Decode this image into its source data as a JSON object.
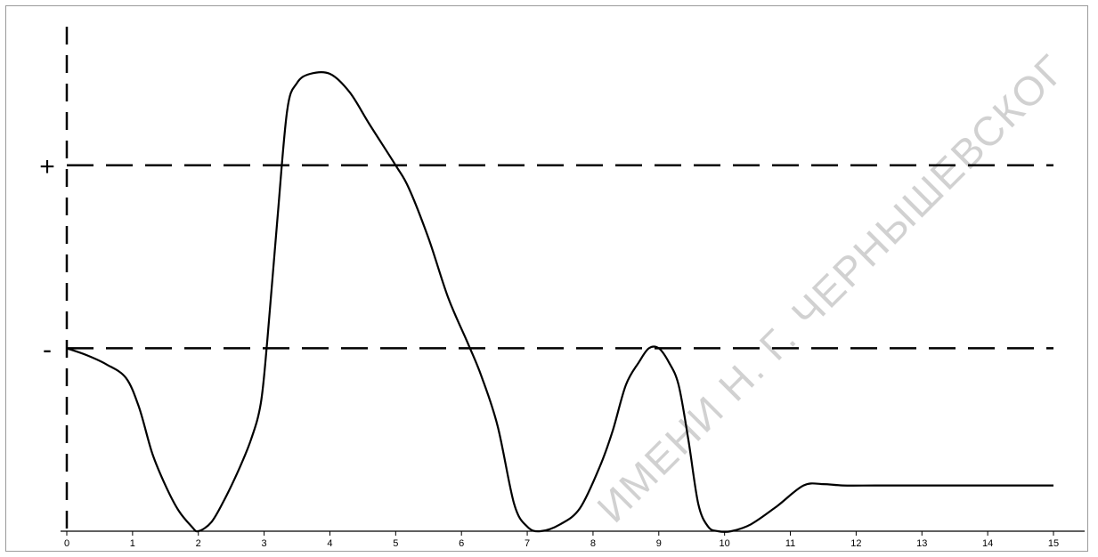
{
  "chart_data": {
    "type": "line",
    "title": "",
    "xlabel": "",
    "ylabel": "",
    "xlim": [
      0,
      15
    ],
    "ylim": [
      0,
      100
    ],
    "x_ticks": [
      "0",
      "1",
      "2",
      "3",
      "4",
      "5",
      "6",
      "7",
      "8",
      "9",
      "10",
      "11",
      "12",
      "13",
      "14",
      "15"
    ],
    "y_level_labels": [
      {
        "label": "+",
        "value": 80
      },
      {
        "label": "-",
        "value": 40
      }
    ],
    "threshold_lines": [
      80,
      40
    ],
    "series": [
      {
        "x": [
          0,
          0.3,
          0.6,
          0.9,
          1.1,
          1.3,
          1.5,
          1.7,
          1.9,
          2.0,
          2.2,
          2.4,
          2.6,
          2.8,
          2.95,
          3.05,
          3.2,
          3.35,
          3.5,
          3.7,
          4.0,
          4.3,
          4.6,
          5.0,
          5.2,
          5.5,
          5.8,
          6.1,
          6.3,
          6.55,
          6.8,
          7.0,
          7.2,
          7.5,
          7.8,
          8.1,
          8.3,
          8.5,
          8.7,
          8.85,
          9.0,
          9.15,
          9.3,
          9.45,
          9.6,
          9.75,
          9.9,
          10.1,
          10.4,
          10.8,
          11.2,
          11.5,
          11.8,
          12.3,
          13.0,
          14.0,
          15.0
        ],
        "y": [
          40,
          38.5,
          36.5,
          33.5,
          27,
          17,
          10,
          4.5,
          1,
          0,
          2,
          7,
          13,
          20,
          28,
          42,
          68,
          92,
          98,
          100,
          100,
          96,
          89,
          80,
          75,
          64,
          51,
          41,
          34,
          23,
          6,
          1,
          0,
          1.5,
          5,
          14,
          22,
          32,
          37,
          40,
          40,
          37,
          32,
          20,
          6,
          1,
          0,
          0,
          1.5,
          5.5,
          10,
          10.3,
          10,
          10,
          10,
          10,
          10
        ]
      }
    ]
  },
  "watermark": {
    "text": "ИМЕНИ Н. Г. ЧЕРНЫШЕВСКОГ"
  }
}
